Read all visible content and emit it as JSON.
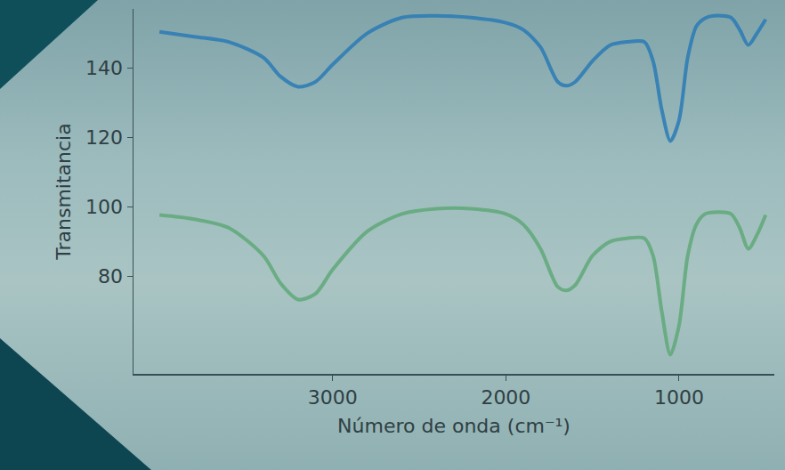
{
  "chart_data": {
    "type": "line",
    "x_label": "Número de onda (cm⁻¹)",
    "y_label": "Transmitancia",
    "x": [
      4000,
      3800,
      3600,
      3400,
      3300,
      3200,
      3100,
      3000,
      2800,
      2600,
      2400,
      2200,
      2000,
      1900,
      1800,
      1700,
      1650,
      1600,
      1500,
      1400,
      1300,
      1200,
      1150,
      1100,
      1050,
      1000,
      950,
      900,
      850,
      800,
      700,
      650,
      600,
      550,
      500
    ],
    "series": [
      {
        "color": "#2a7ab5",
        "values": [
          150.4,
          149,
          147.5,
          143,
          137.5,
          134.6,
          136,
          141,
          150,
          154.5,
          155,
          154.5,
          153,
          151,
          146,
          136,
          134.9,
          136,
          142,
          146.5,
          147.5,
          147.5,
          142,
          128,
          119,
          125,
          143,
          152,
          154.3,
          155,
          154.5,
          151,
          146.6,
          150,
          154
        ]
      },
      {
        "color": "#5fa878",
        "values": [
          97.7,
          96.5,
          94,
          86,
          78,
          73.4,
          75,
          82,
          93,
          98,
          99.5,
          99.5,
          98,
          95,
          88,
          77,
          76,
          77.5,
          86,
          90,
          91,
          91,
          86,
          70,
          57.5,
          66,
          86,
          95,
          98,
          98.5,
          98,
          94,
          88,
          92,
          97.7
        ]
      }
    ],
    "xlim": [
      4150,
      450
    ],
    "xticks": [
      3000,
      2000,
      1000
    ],
    "ylim": [
      52,
      157
    ],
    "yticks": [
      80,
      100,
      120,
      140
    ],
    "grid": false
  }
}
